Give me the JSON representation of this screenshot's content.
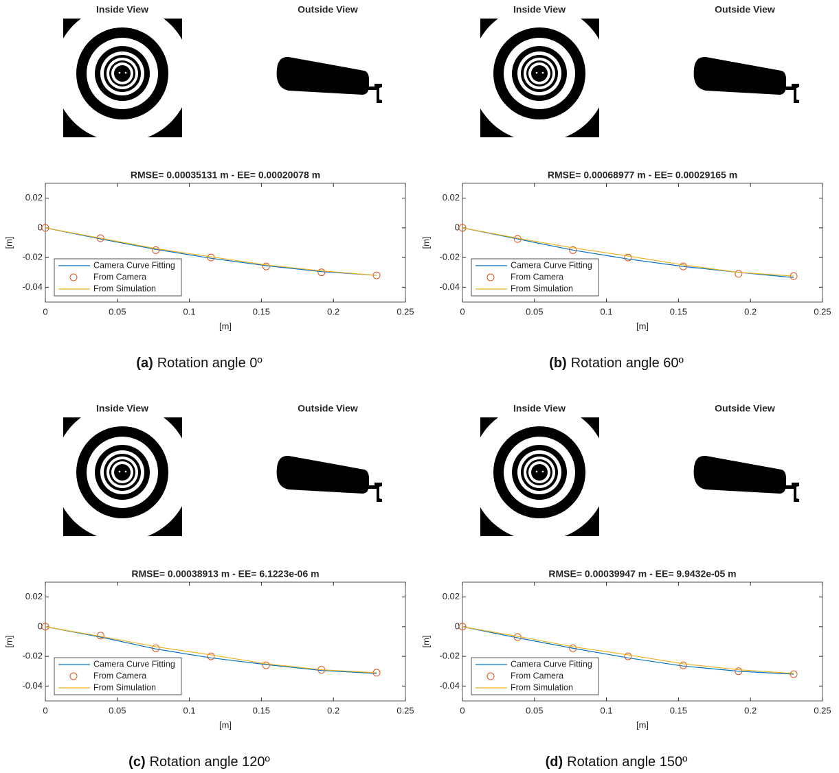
{
  "chart_data": [
    {
      "type": "line",
      "image_titles": [
        "Inside View",
        "Outside View"
      ],
      "title": "RMSE= 0.00035131 m - EE= 0.00020078 m",
      "x_label": "[m]",
      "y_label": "[m]",
      "caption_label": "(a)",
      "caption": "Rotation angle 0º",
      "x": [
        0,
        0.0383,
        0.0767,
        0.115,
        0.1533,
        0.1917,
        0.23
      ],
      "series": [
        {
          "name": "Camera Curve Fitting",
          "color": "#0072bd",
          "style": "line",
          "values": [
            0,
            -0.0075,
            -0.0145,
            -0.0205,
            -0.0255,
            -0.0295,
            -0.032
          ]
        },
        {
          "name": "From Camera",
          "color": "#d95319",
          "style": "circle",
          "values": [
            0,
            -0.007,
            -0.015,
            -0.02,
            -0.026,
            -0.03,
            -0.032
          ]
        },
        {
          "name": "From Simulation",
          "color": "#edb120",
          "style": "line",
          "values": [
            0,
            -0.007,
            -0.014,
            -0.0195,
            -0.025,
            -0.029,
            -0.032
          ]
        }
      ],
      "xlim": [
        0,
        0.25
      ],
      "xticks": [
        0,
        0.05,
        0.1,
        0.15,
        0.2,
        0.25
      ],
      "ylim": [
        -0.05,
        0.03
      ],
      "yticks": [
        -0.04,
        -0.02,
        0,
        0.02
      ],
      "legend": "lower left"
    },
    {
      "type": "line",
      "image_titles": [
        "Inside View",
        "Outside View"
      ],
      "title": "RMSE= 0.00068977 m - EE= 0.00029165 m",
      "x_label": "[m]",
      "y_label": "[m]",
      "caption_label": "(b)",
      "caption": "Rotation angle 60º",
      "x": [
        0,
        0.0383,
        0.0767,
        0.115,
        0.1533,
        0.1917,
        0.23
      ],
      "series": [
        {
          "name": "Camera Curve Fitting",
          "color": "#0072bd",
          "style": "line",
          "values": [
            0,
            -0.0075,
            -0.015,
            -0.021,
            -0.026,
            -0.03,
            -0.0335
          ]
        },
        {
          "name": "From Camera",
          "color": "#d95319",
          "style": "circle",
          "values": [
            0,
            -0.0075,
            -0.015,
            -0.02,
            -0.026,
            -0.031,
            -0.0325
          ]
        },
        {
          "name": "From Simulation",
          "color": "#edb120",
          "style": "line",
          "values": [
            0,
            -0.007,
            -0.0135,
            -0.019,
            -0.025,
            -0.03,
            -0.0325
          ]
        }
      ],
      "xlim": [
        0,
        0.25
      ],
      "xticks": [
        0,
        0.05,
        0.1,
        0.15,
        0.2,
        0.25
      ],
      "ylim": [
        -0.05,
        0.03
      ],
      "yticks": [
        -0.04,
        -0.02,
        0,
        0.02
      ],
      "legend": "lower left"
    },
    {
      "type": "line",
      "image_titles": [
        "Inside View",
        "Outside View"
      ],
      "title": "RMSE= 0.00038913 m - EE= 6.1223e-06 m",
      "x_label": "[m]",
      "y_label": "[m]",
      "caption_label": "(c)",
      "caption": "Rotation angle 120º",
      "x": [
        0,
        0.0383,
        0.0767,
        0.115,
        0.1533,
        0.1917,
        0.23
      ],
      "series": [
        {
          "name": "Camera Curve Fitting",
          "color": "#0072bd",
          "style": "line",
          "values": [
            0,
            -0.007,
            -0.015,
            -0.021,
            -0.0255,
            -0.0295,
            -0.0315
          ]
        },
        {
          "name": "From Camera",
          "color": "#d95319",
          "style": "circle",
          "values": [
            0,
            -0.006,
            -0.0145,
            -0.02,
            -0.026,
            -0.029,
            -0.031
          ]
        },
        {
          "name": "From Simulation",
          "color": "#edb120",
          "style": "line",
          "values": [
            0,
            -0.0065,
            -0.0135,
            -0.019,
            -0.025,
            -0.029,
            -0.031
          ]
        }
      ],
      "xlim": [
        0,
        0.25
      ],
      "xticks": [
        0,
        0.05,
        0.1,
        0.15,
        0.2,
        0.25
      ],
      "ylim": [
        -0.05,
        0.03
      ],
      "yticks": [
        -0.04,
        -0.02,
        0,
        0.02
      ],
      "legend": "lower left"
    },
    {
      "type": "line",
      "image_titles": [
        "Inside View",
        "Outside View"
      ],
      "title": "RMSE= 0.00039947 m - EE= 9.9432e-05 m",
      "x_label": "[m]",
      "y_label": "[m]",
      "caption_label": "(d)",
      "caption": "Rotation angle 150º",
      "x": [
        0,
        0.0383,
        0.0767,
        0.115,
        0.1533,
        0.1917,
        0.23
      ],
      "series": [
        {
          "name": "Camera Curve Fitting",
          "color": "#0072bd",
          "style": "line",
          "values": [
            0,
            -0.0075,
            -0.0145,
            -0.021,
            -0.0265,
            -0.03,
            -0.032
          ]
        },
        {
          "name": "From Camera",
          "color": "#d95319",
          "style": "circle",
          "values": [
            0,
            -0.007,
            -0.0145,
            -0.02,
            -0.026,
            -0.03,
            -0.032
          ]
        },
        {
          "name": "From Simulation",
          "color": "#edb120",
          "style": "line",
          "values": [
            0,
            -0.0065,
            -0.0135,
            -0.019,
            -0.025,
            -0.029,
            -0.0315
          ]
        }
      ],
      "xlim": [
        0,
        0.25
      ],
      "xticks": [
        0,
        0.05,
        0.1,
        0.15,
        0.2,
        0.25
      ],
      "ylim": [
        -0.05,
        0.03
      ],
      "yticks": [
        -0.04,
        -0.02,
        0,
        0.02
      ],
      "legend": "lower left"
    }
  ]
}
